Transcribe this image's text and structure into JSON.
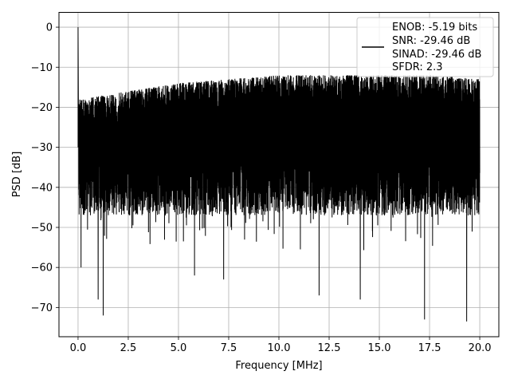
{
  "chart_data": {
    "type": "line",
    "title": "",
    "xlabel": "Frequency [MHz]",
    "ylabel": "PSD [dB]",
    "xlim": [
      -0.95,
      20.95
    ],
    "ylim": [
      -77.3,
      3.7
    ],
    "xticks": [
      0.0,
      2.5,
      5.0,
      7.5,
      10.0,
      12.5,
      15.0,
      17.5,
      20.0
    ],
    "xtick_labels": [
      "0.0",
      "2.5",
      "5.0",
      "7.5",
      "10.0",
      "12.5",
      "15.0",
      "17.5",
      "20.0"
    ],
    "yticks": [
      0,
      -10,
      -20,
      -30,
      -40,
      -50,
      -60,
      -70
    ],
    "ytick_labels": [
      "0",
      "−10",
      "−20",
      "−30",
      "−40",
      "−50",
      "−60",
      "−70"
    ],
    "grid": true,
    "legend_position": "top-right",
    "legend": [
      "ENOB: -5.19 bits",
      "SNR: -29.46 dB",
      "SINAD: -29.46 dB",
      "SFDR: 2.3"
    ],
    "series": [
      {
        "color": "#000000",
        "frequency_range_mhz": [
          0,
          20
        ],
        "peak": {
          "x": 0.0,
          "y": 0.0
        },
        "upper_envelope": {
          "x": [
            0.1,
            2.5,
            5.0,
            7.5,
            10.0,
            12.5,
            15.0,
            17.5,
            20.0
          ],
          "y": [
            -17,
            -15,
            -13,
            -12,
            -11,
            -11,
            -11,
            -11,
            -12
          ]
        },
        "noise_floor_db": -28,
        "deep_nulls": [
          {
            "x": 0.15,
            "y": -60
          },
          {
            "x": 1.0,
            "y": -68
          },
          {
            "x": 1.25,
            "y": -72
          },
          {
            "x": 5.8,
            "y": -62
          },
          {
            "x": 7.25,
            "y": -63
          },
          {
            "x": 12.0,
            "y": -62
          },
          {
            "x": 12.0,
            "y": -67
          },
          {
            "x": 14.05,
            "y": -68
          },
          {
            "x": 17.25,
            "y": -73
          },
          {
            "x": 19.35,
            "y": -73.5
          }
        ]
      }
    ]
  }
}
